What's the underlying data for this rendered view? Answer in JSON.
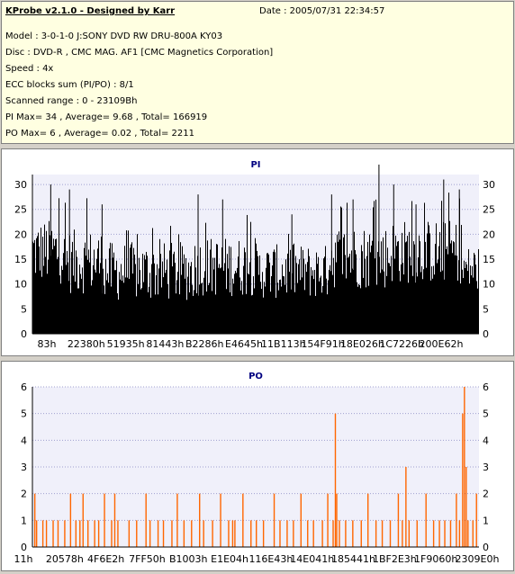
{
  "header": {
    "title": "KProbe v2.1.0 - Designed by Karr",
    "date": "Date : 2005/07/31 22:34:57",
    "lines": [
      "Model : 3-0-1-0 J:SONY    DVD RW DRU-800A  KY03",
      "Disc : DVD-R , CMC MAG. AF1 [CMC Magnetics Corporation]",
      "Speed : 4x",
      "ECC blocks sum (PI/PO) : 8/1",
      "Scanned range : 0 - 23109Bh",
      "PI Max= 34 , Average= 9.68 , Total= 166919",
      "PO Max= 6 , Average= 0.02 , Total= 2211"
    ]
  },
  "colors": {
    "pi_bars": "#000000",
    "po_bars": "#ff6600",
    "plot_bg": "#f0f0fa",
    "grid": "#a0a0d0",
    "title": "#000080"
  },
  "chart_data": [
    {
      "type": "bar",
      "title": "PI",
      "ylim": [
        0,
        32
      ],
      "y_ticks": [
        0,
        5,
        10,
        15,
        20,
        25,
        30
      ],
      "x_tick_labels": [
        "83h",
        "22380h",
        "51935h",
        "81443h",
        "B2286h",
        "E4645h",
        "11B113h",
        "154F91h",
        "18E026h",
        "1C7226h",
        "200E62h"
      ],
      "grid": "horizontal",
      "segments": [
        {
          "x0": 0.0,
          "x1": 0.07,
          "base": 16.5,
          "spread": 6.5,
          "peak": 28
        },
        {
          "x0": 0.07,
          "x1": 0.16,
          "base": 14.5,
          "spread": 6.5,
          "peak": 28
        },
        {
          "x0": 0.16,
          "x1": 0.36,
          "base": 12.5,
          "spread": 6.0,
          "peak": 22
        },
        {
          "x0": 0.36,
          "x1": 0.5,
          "base": 13.5,
          "spread": 6.0,
          "peak": 25
        },
        {
          "x0": 0.5,
          "x1": 0.66,
          "base": 12.5,
          "spread": 5.5,
          "peak": 21
        },
        {
          "x0": 0.66,
          "x1": 0.8,
          "base": 15.5,
          "spread": 6.5,
          "peak": 27
        },
        {
          "x0": 0.8,
          "x1": 0.96,
          "base": 16.5,
          "spread": 6.5,
          "peak": 29
        },
        {
          "x0": 0.96,
          "x1": 1.0,
          "base": 13.0,
          "spread": 5.0,
          "peak": 17
        }
      ],
      "spikes": [
        {
          "x": 0.04,
          "y": 30
        },
        {
          "x": 0.082,
          "y": 29
        },
        {
          "x": 0.155,
          "y": 26
        },
        {
          "x": 0.37,
          "y": 28
        },
        {
          "x": 0.425,
          "y": 27
        },
        {
          "x": 0.58,
          "y": 24
        },
        {
          "x": 0.669,
          "y": 28
        },
        {
          "x": 0.717,
          "y": 27
        },
        {
          "x": 0.775,
          "y": 34
        },
        {
          "x": 0.808,
          "y": 30
        },
        {
          "x": 0.858,
          "y": 26
        },
        {
          "x": 0.92,
          "y": 31
        },
        {
          "x": 0.955,
          "y": 29
        }
      ]
    },
    {
      "type": "bar",
      "title": "PO",
      "ylim": [
        0,
        6
      ],
      "y_ticks": [
        0,
        1,
        2,
        3,
        4,
        5,
        6
      ],
      "x_tick_labels": [
        "11h",
        "20578h",
        "4F6E2h",
        "7FF50h",
        "B1003h",
        "E1E04h",
        "116E43h",
        "14E041h",
        "185441h",
        "1BF2E3h",
        "1F9060h",
        "2309E0h"
      ],
      "grid": "horizontal",
      "points": [
        {
          "x": 0.004,
          "y": 2
        },
        {
          "x": 0.008,
          "y": 1
        },
        {
          "x": 0.022,
          "y": 1
        },
        {
          "x": 0.03,
          "y": 1
        },
        {
          "x": 0.045,
          "y": 1
        },
        {
          "x": 0.056,
          "y": 1
        },
        {
          "x": 0.071,
          "y": 1
        },
        {
          "x": 0.084,
          "y": 2
        },
        {
          "x": 0.096,
          "y": 1
        },
        {
          "x": 0.105,
          "y": 1
        },
        {
          "x": 0.112,
          "y": 2
        },
        {
          "x": 0.123,
          "y": 1
        },
        {
          "x": 0.138,
          "y": 1
        },
        {
          "x": 0.147,
          "y": 1
        },
        {
          "x": 0.16,
          "y": 2
        },
        {
          "x": 0.176,
          "y": 1
        },
        {
          "x": 0.183,
          "y": 2
        },
        {
          "x": 0.19,
          "y": 1
        },
        {
          "x": 0.215,
          "y": 1
        },
        {
          "x": 0.232,
          "y": 1
        },
        {
          "x": 0.253,
          "y": 2
        },
        {
          "x": 0.262,
          "y": 1
        },
        {
          "x": 0.28,
          "y": 1
        },
        {
          "x": 0.292,
          "y": 1
        },
        {
          "x": 0.311,
          "y": 1
        },
        {
          "x": 0.323,
          "y": 2
        },
        {
          "x": 0.338,
          "y": 1
        },
        {
          "x": 0.355,
          "y": 1
        },
        {
          "x": 0.373,
          "y": 2
        },
        {
          "x": 0.382,
          "y": 1
        },
        {
          "x": 0.402,
          "y": 1
        },
        {
          "x": 0.42,
          "y": 2
        },
        {
          "x": 0.438,
          "y": 1
        },
        {
          "x": 0.447,
          "y": 1
        },
        {
          "x": 0.452,
          "y": 1
        },
        {
          "x": 0.47,
          "y": 2
        },
        {
          "x": 0.488,
          "y": 1
        },
        {
          "x": 0.5,
          "y": 1
        },
        {
          "x": 0.516,
          "y": 1
        },
        {
          "x": 0.54,
          "y": 2
        },
        {
          "x": 0.553,
          "y": 1
        },
        {
          "x": 0.569,
          "y": 1
        },
        {
          "x": 0.583,
          "y": 1
        },
        {
          "x": 0.6,
          "y": 2
        },
        {
          "x": 0.615,
          "y": 1
        },
        {
          "x": 0.628,
          "y": 1
        },
        {
          "x": 0.648,
          "y": 1
        },
        {
          "x": 0.66,
          "y": 2
        },
        {
          "x": 0.672,
          "y": 1
        },
        {
          "x": 0.677,
          "y": 5
        },
        {
          "x": 0.68,
          "y": 2
        },
        {
          "x": 0.686,
          "y": 1
        },
        {
          "x": 0.7,
          "y": 1
        },
        {
          "x": 0.716,
          "y": 1
        },
        {
          "x": 0.735,
          "y": 1
        },
        {
          "x": 0.75,
          "y": 2
        },
        {
          "x": 0.768,
          "y": 1
        },
        {
          "x": 0.782,
          "y": 1
        },
        {
          "x": 0.8,
          "y": 1
        },
        {
          "x": 0.818,
          "y": 2
        },
        {
          "x": 0.827,
          "y": 1
        },
        {
          "x": 0.835,
          "y": 3
        },
        {
          "x": 0.842,
          "y": 1
        },
        {
          "x": 0.86,
          "y": 1
        },
        {
          "x": 0.88,
          "y": 2
        },
        {
          "x": 0.897,
          "y": 1
        },
        {
          "x": 0.91,
          "y": 1
        },
        {
          "x": 0.922,
          "y": 1
        },
        {
          "x": 0.935,
          "y": 1
        },
        {
          "x": 0.948,
          "y": 2
        },
        {
          "x": 0.955,
          "y": 1
        },
        {
          "x": 0.962,
          "y": 5
        },
        {
          "x": 0.966,
          "y": 6
        },
        {
          "x": 0.97,
          "y": 3
        },
        {
          "x": 0.974,
          "y": 1
        },
        {
          "x": 0.985,
          "y": 1
        },
        {
          "x": 0.993,
          "y": 2
        }
      ]
    }
  ]
}
